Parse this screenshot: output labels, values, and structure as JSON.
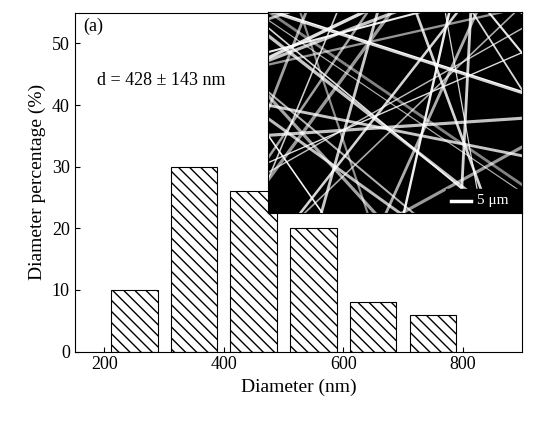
{
  "chart_data": {
    "type": "bar",
    "x": [
      250,
      350,
      450,
      550,
      650,
      750
    ],
    "values": [
      10,
      30,
      26,
      20,
      8,
      6
    ],
    "color": "#ffffff",
    "xlabel": "Diameter (nm)",
    "ylabel": "Diameter percentage (%)",
    "xlim": [
      150,
      900
    ],
    "xticks": [
      200,
      400,
      600,
      800
    ],
    "ylim": [
      0,
      55
    ],
    "yticks": [
      0,
      10,
      20,
      30,
      40,
      50
    ],
    "panel_label": "(a)",
    "annotation": "d = 428 ± 143 nm",
    "inset_scale_bar": "5 μm",
    "grid": false
  }
}
